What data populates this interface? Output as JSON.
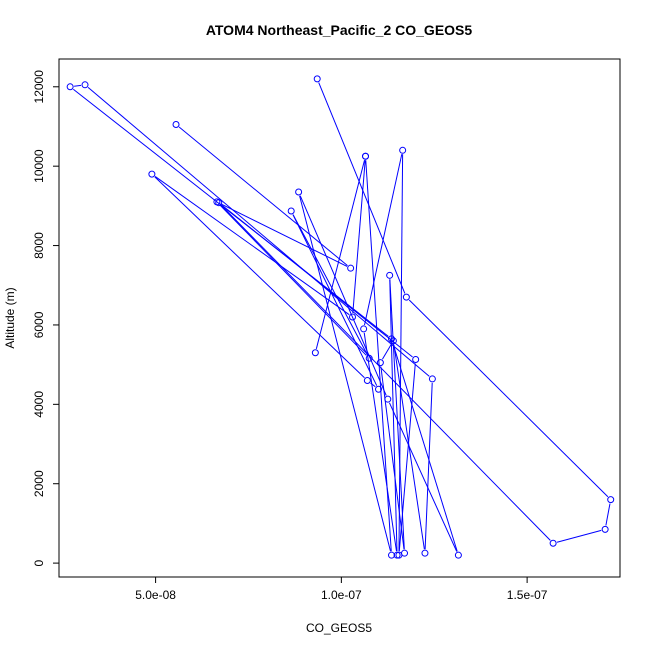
{
  "chart_data": {
    "type": "line",
    "title": "ATOM4 Northeast_Pacific_2 CO_GEOS5",
    "xlabel": "CO_GEOS5",
    "ylabel": "Altitude (m)",
    "xlim": [
      2.4e-08,
      1.75e-07
    ],
    "ylim": [
      -350,
      12700
    ],
    "x_ticks": [
      5e-08,
      1e-07,
      1.5e-07
    ],
    "x_tick_labels": [
      "5.0e-08",
      "1.0e-07",
      "1.5e-07"
    ],
    "y_ticks": [
      0,
      2000,
      4000,
      6000,
      8000,
      10000,
      12000
    ],
    "y_tick_labels": [
      "0",
      "2000",
      "4000",
      "6000",
      "8000",
      "10000",
      "12000"
    ],
    "grid": false,
    "series": [
      {
        "color": "#0000ff",
        "marker": "open-circle",
        "points": [
          {
            "x": 9.35e-08,
            "y": 12200
          },
          {
            "x": 1.175e-07,
            "y": 6700
          },
          {
            "x": 1.725e-07,
            "y": 1600
          },
          {
            "x": 1.71e-07,
            "y": 850
          },
          {
            "x": 1.57e-07,
            "y": 500
          },
          {
            "x": 6.7e-08,
            "y": 9080
          },
          {
            "x": 1.2e-07,
            "y": 5130
          },
          {
            "x": 1.155e-07,
            "y": 200
          },
          {
            "x": 1.165e-07,
            "y": 10400
          },
          {
            "x": 1.06e-07,
            "y": 5900
          },
          {
            "x": 1.15e-07,
            "y": 200
          },
          {
            "x": 1.13e-07,
            "y": 7250
          },
          {
            "x": 1.17e-07,
            "y": 250
          },
          {
            "x": 1.105e-07,
            "y": 5050
          },
          {
            "x": 1.14e-07,
            "y": 5600
          },
          {
            "x": 1.225e-07,
            "y": 250
          },
          {
            "x": 1.245e-07,
            "y": 4640
          },
          {
            "x": 3.1e-08,
            "y": 12050
          },
          {
            "x": 2.7e-08,
            "y": 12000
          },
          {
            "x": 1.135e-07,
            "y": 5650
          },
          {
            "x": 1.315e-07,
            "y": 200
          },
          {
            "x": 1.125e-07,
            "y": 4130
          },
          {
            "x": 8.85e-08,
            "y": 9350
          },
          {
            "x": 1.135e-07,
            "y": 200
          },
          {
            "x": 1.065e-07,
            "y": 10250
          },
          {
            "x": 1.03e-07,
            "y": 6200
          },
          {
            "x": 4.9e-08,
            "y": 9800
          },
          {
            "x": 1.07e-07,
            "y": 4600
          },
          {
            "x": 1.1e-07,
            "y": 4380
          },
          {
            "x": 8.65e-08,
            "y": 8870
          },
          {
            "x": 1.075e-07,
            "y": 5160
          },
          {
            "x": 6.65e-08,
            "y": 9100
          },
          {
            "x": 1.025e-07,
            "y": 7430
          },
          {
            "x": 5.55e-08,
            "y": 11050
          }
        ]
      },
      {
        "color": "#0000ff",
        "marker": "open-circle",
        "points": [
          {
            "x": 9.3e-08,
            "y": 5300
          },
          {
            "x": 1.065e-07,
            "y": 10250
          }
        ]
      }
    ]
  }
}
